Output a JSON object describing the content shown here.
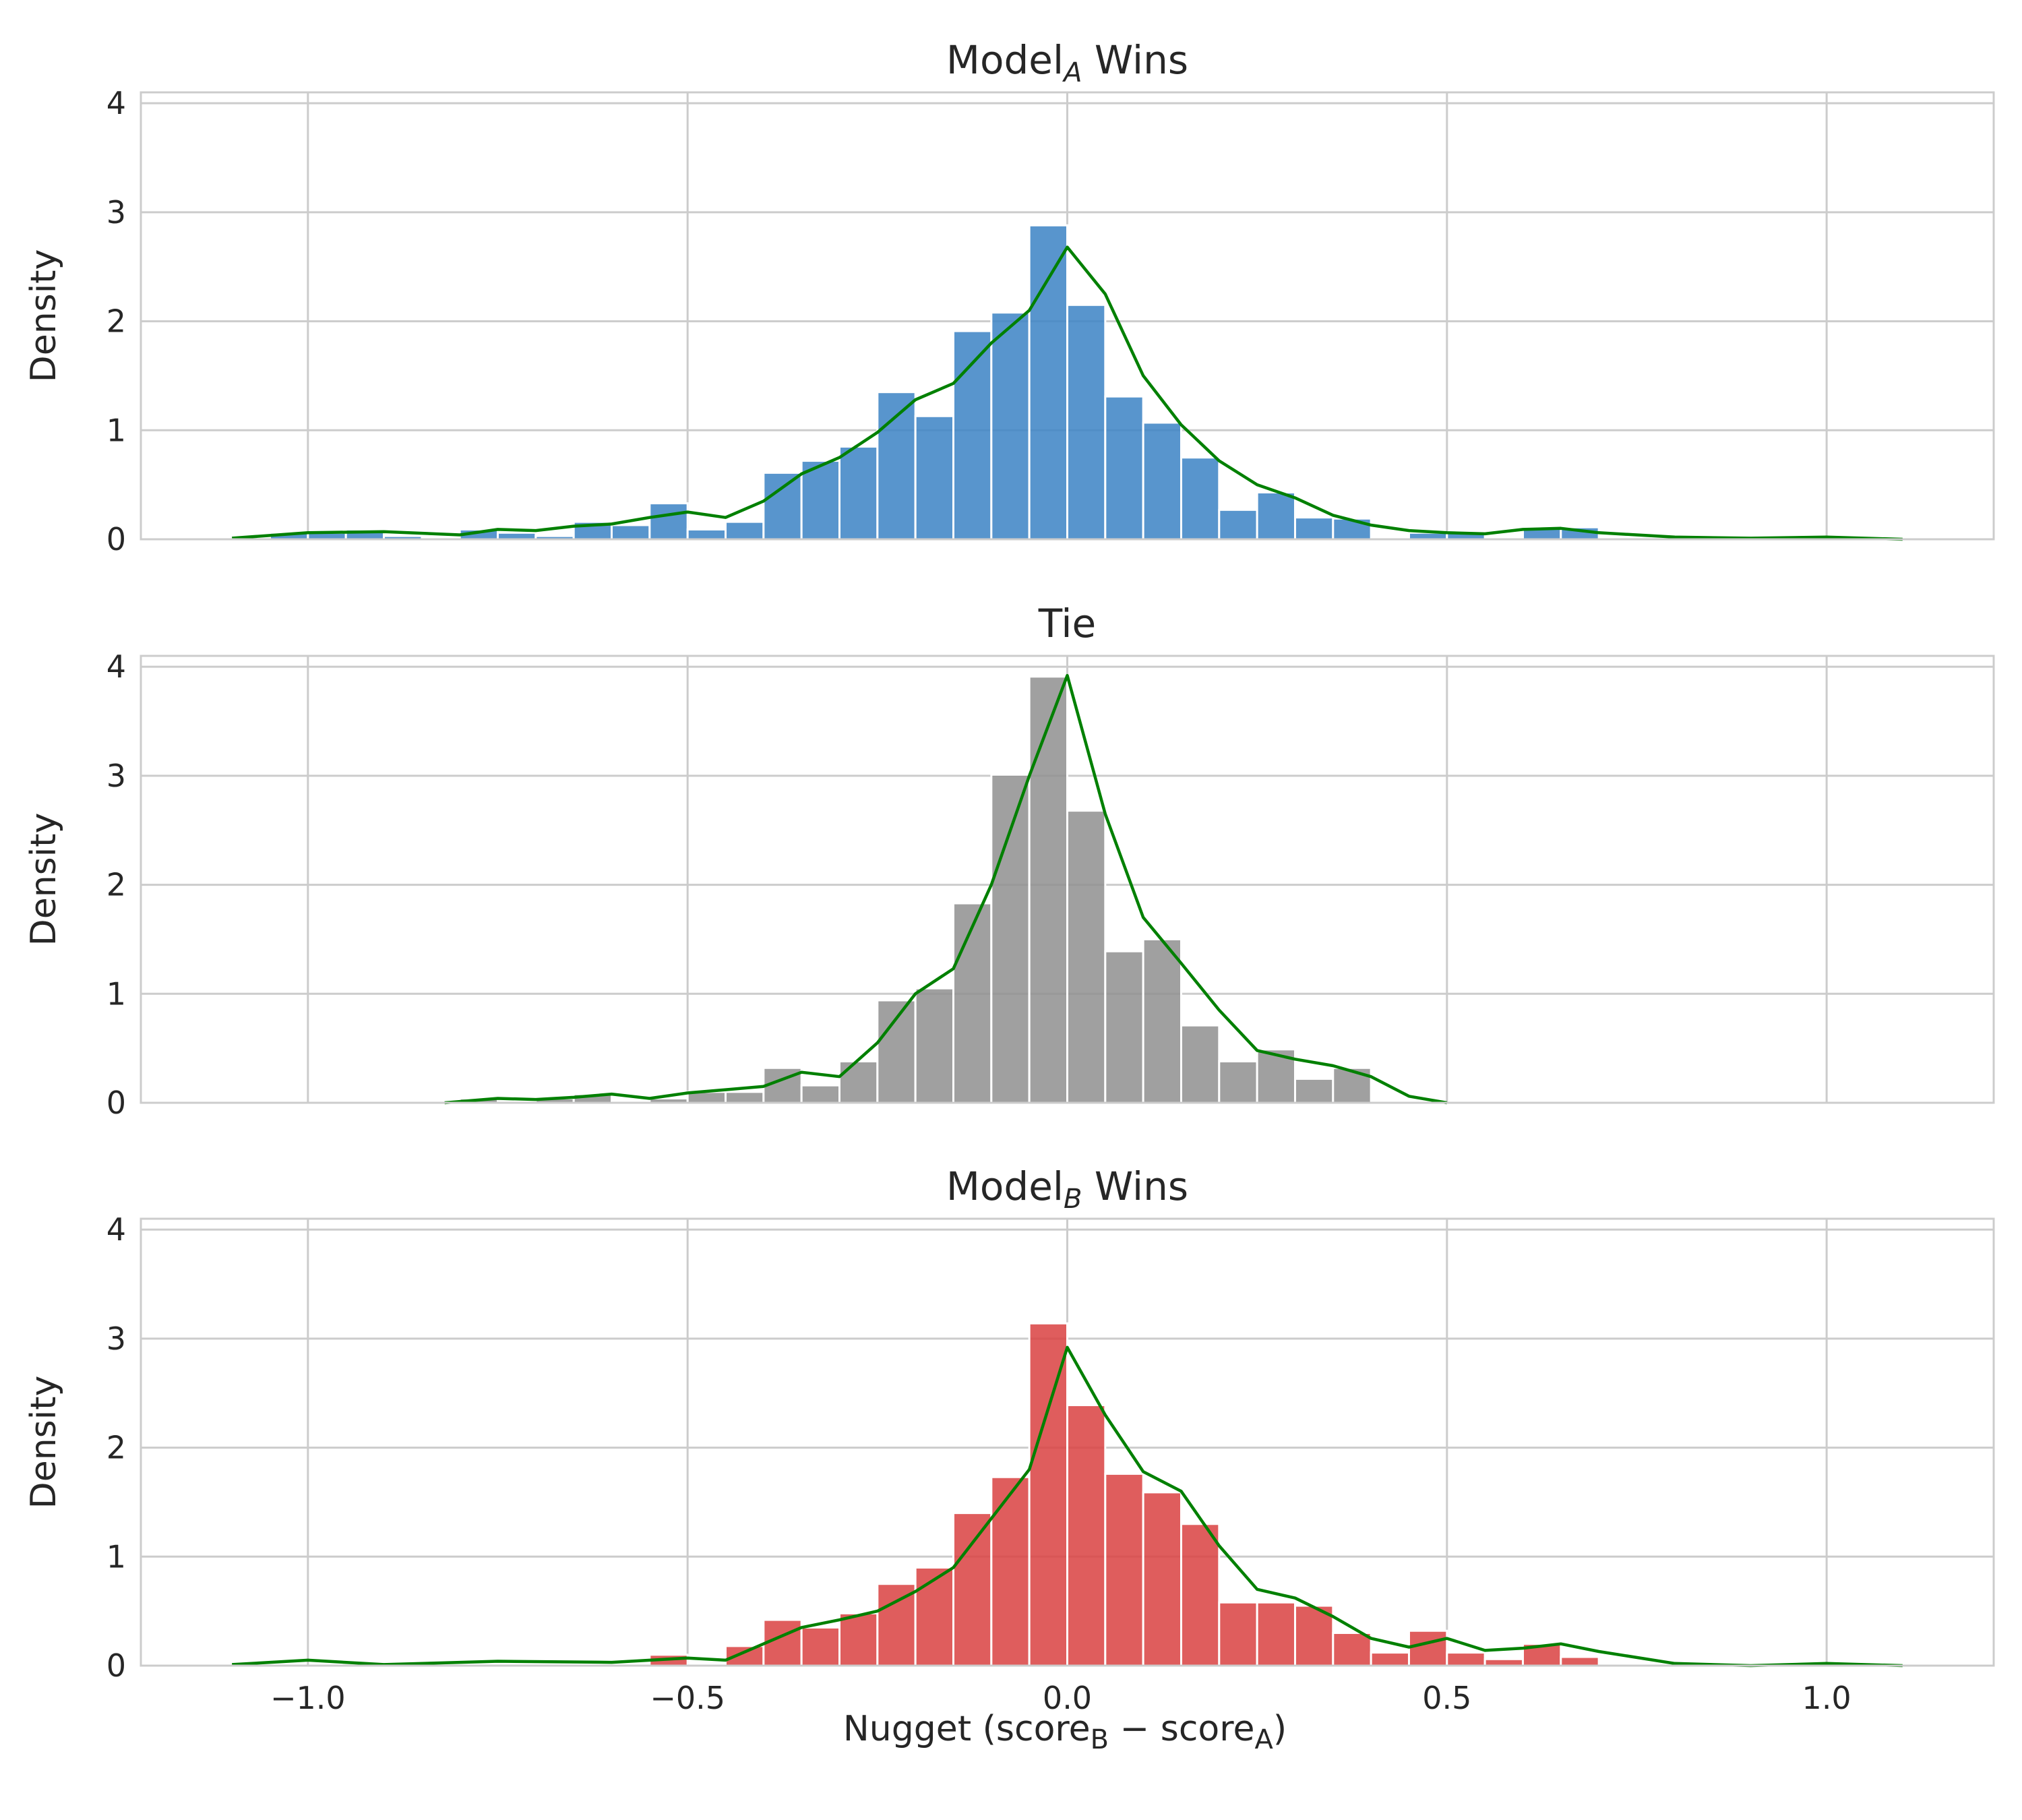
{
  "figure": {
    "xlabel": {
      "prefix": "Nugget (score",
      "sub1": "B",
      "middle": " − score",
      "sub2": "A",
      "suffix": ")"
    },
    "ylabel": "Density"
  },
  "chart_data": [
    {
      "type": "histogram",
      "title": {
        "main": "Model",
        "sub": "A",
        "suffix": " Wins"
      },
      "bar_color": "#3b82c4",
      "kde_color": "#008000",
      "bin_width": 0.05,
      "xlim": [
        -1.22,
        1.22
      ],
      "ylim": [
        0,
        4.1
      ],
      "xticks": [
        -1.0,
        -0.5,
        0.0,
        0.5,
        1.0
      ],
      "xtick_labels": [
        "−1.0",
        "−0.5",
        "0.0",
        "0.5",
        "1.0"
      ],
      "yticks": [
        0,
        1,
        2,
        3,
        4
      ],
      "ytick_labels": [
        "0",
        "1",
        "2",
        "3",
        "4"
      ],
      "grid": true,
      "bins": [
        {
          "x": -1.025,
          "y": 0.06
        },
        {
          "x": -0.975,
          "y": 0.06
        },
        {
          "x": -0.925,
          "y": 0.09
        },
        {
          "x": -0.875,
          "y": 0.03
        },
        {
          "x": -0.775,
          "y": 0.09
        },
        {
          "x": -0.725,
          "y": 0.06
        },
        {
          "x": -0.675,
          "y": 0.03
        },
        {
          "x": -0.625,
          "y": 0.16
        },
        {
          "x": -0.575,
          "y": 0.13
        },
        {
          "x": -0.525,
          "y": 0.33
        },
        {
          "x": -0.475,
          "y": 0.09
        },
        {
          "x": -0.425,
          "y": 0.16
        },
        {
          "x": -0.375,
          "y": 0.61
        },
        {
          "x": -0.325,
          "y": 0.72
        },
        {
          "x": -0.275,
          "y": 0.85
        },
        {
          "x": -0.225,
          "y": 1.35
        },
        {
          "x": -0.175,
          "y": 1.13
        },
        {
          "x": -0.125,
          "y": 1.91
        },
        {
          "x": -0.075,
          "y": 2.08
        },
        {
          "x": -0.025,
          "y": 2.88
        },
        {
          "x": 0.025,
          "y": 2.15
        },
        {
          "x": 0.075,
          "y": 1.31
        },
        {
          "x": 0.125,
          "y": 1.07
        },
        {
          "x": 0.175,
          "y": 0.75
        },
        {
          "x": 0.225,
          "y": 0.27
        },
        {
          "x": 0.275,
          "y": 0.43
        },
        {
          "x": 0.325,
          "y": 0.2
        },
        {
          "x": 0.375,
          "y": 0.19
        },
        {
          "x": 0.475,
          "y": 0.06
        },
        {
          "x": 0.525,
          "y": 0.06
        },
        {
          "x": 0.625,
          "y": 0.11
        },
        {
          "x": 0.675,
          "y": 0.11
        }
      ],
      "kde": [
        [
          -1.1,
          0.01
        ],
        [
          -1.0,
          0.06
        ],
        [
          -0.9,
          0.07
        ],
        [
          -0.8,
          0.04
        ],
        [
          -0.75,
          0.09
        ],
        [
          -0.7,
          0.08
        ],
        [
          -0.65,
          0.12
        ],
        [
          -0.6,
          0.14
        ],
        [
          -0.55,
          0.2
        ],
        [
          -0.5,
          0.25
        ],
        [
          -0.45,
          0.2
        ],
        [
          -0.4,
          0.35
        ],
        [
          -0.35,
          0.6
        ],
        [
          -0.3,
          0.75
        ],
        [
          -0.25,
          0.98
        ],
        [
          -0.2,
          1.28
        ],
        [
          -0.15,
          1.43
        ],
        [
          -0.1,
          1.8
        ],
        [
          -0.05,
          2.1
        ],
        [
          0.0,
          2.68
        ],
        [
          0.05,
          2.25
        ],
        [
          0.1,
          1.5
        ],
        [
          0.15,
          1.05
        ],
        [
          0.2,
          0.72
        ],
        [
          0.25,
          0.5
        ],
        [
          0.3,
          0.38
        ],
        [
          0.35,
          0.22
        ],
        [
          0.4,
          0.13
        ],
        [
          0.45,
          0.08
        ],
        [
          0.5,
          0.06
        ],
        [
          0.55,
          0.05
        ],
        [
          0.6,
          0.09
        ],
        [
          0.65,
          0.1
        ],
        [
          0.7,
          0.06
        ],
        [
          0.8,
          0.02
        ],
        [
          0.9,
          0.01
        ],
        [
          1.0,
          0.02
        ],
        [
          1.1,
          0.0
        ]
      ]
    },
    {
      "type": "histogram",
      "title": {
        "main": "Tie",
        "sub": "",
        "suffix": ""
      },
      "bar_color": "#8f8f8f",
      "kde_color": "#008000",
      "bin_width": 0.05,
      "xlim": [
        -1.22,
        1.22
      ],
      "ylim": [
        0,
        4.1
      ],
      "xticks": [
        -1.0,
        -0.5,
        0.0,
        0.5,
        1.0
      ],
      "xtick_labels": [
        "−1.0",
        "−0.5",
        "0.0",
        "0.5",
        "1.0"
      ],
      "yticks": [
        0,
        1,
        2,
        3,
        4
      ],
      "ytick_labels": [
        "0",
        "1",
        "2",
        "3",
        "4"
      ],
      "grid": true,
      "bins": [
        {
          "x": -0.775,
          "y": 0.04
        },
        {
          "x": -0.675,
          "y": 0.04
        },
        {
          "x": -0.625,
          "y": 0.08
        },
        {
          "x": -0.525,
          "y": 0.04
        },
        {
          "x": -0.475,
          "y": 0.1
        },
        {
          "x": -0.425,
          "y": 0.1
        },
        {
          "x": -0.375,
          "y": 0.32
        },
        {
          "x": -0.325,
          "y": 0.16
        },
        {
          "x": -0.275,
          "y": 0.38
        },
        {
          "x": -0.225,
          "y": 0.94
        },
        {
          "x": -0.175,
          "y": 1.05
        },
        {
          "x": -0.125,
          "y": 1.83
        },
        {
          "x": -0.075,
          "y": 3.01
        },
        {
          "x": -0.025,
          "y": 3.91
        },
        {
          "x": 0.025,
          "y": 2.68
        },
        {
          "x": 0.075,
          "y": 1.39
        },
        {
          "x": 0.125,
          "y": 1.5
        },
        {
          "x": 0.175,
          "y": 0.71
        },
        {
          "x": 0.225,
          "y": 0.38
        },
        {
          "x": 0.275,
          "y": 0.49
        },
        {
          "x": 0.325,
          "y": 0.22
        },
        {
          "x": 0.375,
          "y": 0.32
        }
      ],
      "kde": [
        [
          -0.82,
          0.0
        ],
        [
          -0.75,
          0.04
        ],
        [
          -0.7,
          0.03
        ],
        [
          -0.65,
          0.05
        ],
        [
          -0.6,
          0.08
        ],
        [
          -0.55,
          0.04
        ],
        [
          -0.5,
          0.09
        ],
        [
          -0.45,
          0.12
        ],
        [
          -0.4,
          0.15
        ],
        [
          -0.35,
          0.28
        ],
        [
          -0.3,
          0.24
        ],
        [
          -0.25,
          0.55
        ],
        [
          -0.2,
          1.0
        ],
        [
          -0.15,
          1.23
        ],
        [
          -0.1,
          2.0
        ],
        [
          -0.05,
          3.0
        ],
        [
          0.0,
          3.92
        ],
        [
          0.05,
          2.65
        ],
        [
          0.1,
          1.7
        ],
        [
          0.15,
          1.28
        ],
        [
          0.2,
          0.85
        ],
        [
          0.25,
          0.48
        ],
        [
          0.3,
          0.4
        ],
        [
          0.35,
          0.34
        ],
        [
          0.4,
          0.24
        ],
        [
          0.45,
          0.06
        ],
        [
          0.5,
          0.0
        ]
      ]
    },
    {
      "type": "histogram",
      "title": {
        "main": "Model",
        "sub": "B",
        "suffix": " Wins"
      },
      "bar_color": "#d94141",
      "kde_color": "#008000",
      "bin_width": 0.05,
      "xlim": [
        -1.22,
        1.22
      ],
      "ylim": [
        0,
        4.1
      ],
      "xticks": [
        -1.0,
        -0.5,
        0.0,
        0.5,
        1.0
      ],
      "xtick_labels": [
        "−1.0",
        "−0.5",
        "0.0",
        "0.5",
        "1.0"
      ],
      "yticks": [
        0,
        1,
        2,
        3,
        4
      ],
      "ytick_labels": [
        "0",
        "1",
        "2",
        "3",
        "4"
      ],
      "grid": true,
      "bins": [
        {
          "x": -0.525,
          "y": 0.1
        },
        {
          "x": -0.425,
          "y": 0.18
        },
        {
          "x": -0.375,
          "y": 0.42
        },
        {
          "x": -0.325,
          "y": 0.35
        },
        {
          "x": -0.275,
          "y": 0.48
        },
        {
          "x": -0.225,
          "y": 0.75
        },
        {
          "x": -0.175,
          "y": 0.9
        },
        {
          "x": -0.125,
          "y": 1.4
        },
        {
          "x": -0.075,
          "y": 1.73
        },
        {
          "x": -0.025,
          "y": 3.14
        },
        {
          "x": 0.025,
          "y": 2.39
        },
        {
          "x": 0.075,
          "y": 1.76
        },
        {
          "x": 0.125,
          "y": 1.59
        },
        {
          "x": 0.175,
          "y": 1.3
        },
        {
          "x": 0.225,
          "y": 0.58
        },
        {
          "x": 0.275,
          "y": 0.58
        },
        {
          "x": 0.325,
          "y": 0.55
        },
        {
          "x": 0.375,
          "y": 0.3
        },
        {
          "x": 0.425,
          "y": 0.12
        },
        {
          "x": 0.475,
          "y": 0.32
        },
        {
          "x": 0.525,
          "y": 0.12
        },
        {
          "x": 0.575,
          "y": 0.06
        },
        {
          "x": 0.625,
          "y": 0.2
        },
        {
          "x": 0.675,
          "y": 0.08
        }
      ],
      "kde": [
        [
          -1.1,
          0.01
        ],
        [
          -1.0,
          0.05
        ],
        [
          -0.9,
          0.01
        ],
        [
          -0.75,
          0.04
        ],
        [
          -0.6,
          0.03
        ],
        [
          -0.5,
          0.07
        ],
        [
          -0.45,
          0.05
        ],
        [
          -0.4,
          0.2
        ],
        [
          -0.35,
          0.35
        ],
        [
          -0.3,
          0.42
        ],
        [
          -0.25,
          0.5
        ],
        [
          -0.2,
          0.68
        ],
        [
          -0.15,
          0.9
        ],
        [
          -0.1,
          1.35
        ],
        [
          -0.05,
          1.8
        ],
        [
          0.0,
          2.92
        ],
        [
          0.05,
          2.3
        ],
        [
          0.1,
          1.78
        ],
        [
          0.15,
          1.6
        ],
        [
          0.2,
          1.1
        ],
        [
          0.25,
          0.7
        ],
        [
          0.3,
          0.62
        ],
        [
          0.35,
          0.45
        ],
        [
          0.4,
          0.25
        ],
        [
          0.45,
          0.17
        ],
        [
          0.5,
          0.25
        ],
        [
          0.55,
          0.14
        ],
        [
          0.6,
          0.16
        ],
        [
          0.65,
          0.2
        ],
        [
          0.7,
          0.13
        ],
        [
          0.8,
          0.02
        ],
        [
          0.9,
          0.0
        ],
        [
          1.0,
          0.02
        ],
        [
          1.1,
          0.0
        ]
      ]
    }
  ]
}
